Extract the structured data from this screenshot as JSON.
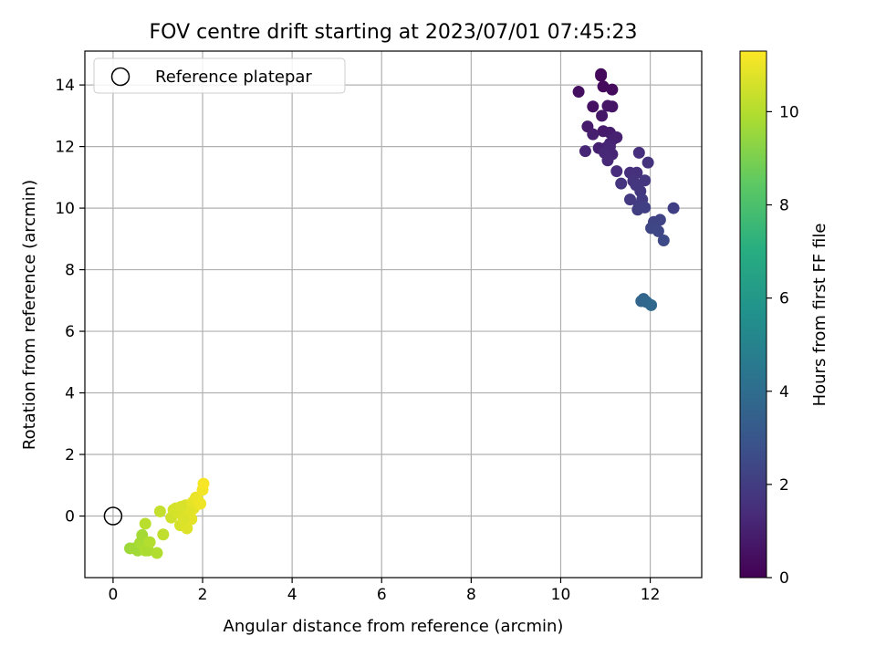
{
  "chart_data": {
    "type": "scatter",
    "title": "FOV centre drift starting at 2023/07/01 07:45:23",
    "xlabel": "Angular distance from reference (arcmin)",
    "ylabel": "Rotation from reference (arcmin)",
    "xlim": [
      -0.63,
      13.15
    ],
    "ylim": [
      -2.0,
      15.1
    ],
    "xticks": [
      0,
      2,
      4,
      6,
      8,
      10,
      12
    ],
    "yticks": [
      0,
      2,
      4,
      6,
      8,
      10,
      12,
      14
    ],
    "grid": true,
    "legend": {
      "placement": "top-left",
      "entries": [
        "Reference platepar"
      ]
    },
    "reference_point": {
      "x": 0,
      "y": 0
    },
    "colorbar": {
      "label": "Hours from first FF file",
      "range": [
        0,
        11.3
      ],
      "ticks": [
        0,
        2,
        4,
        6,
        8,
        10
      ],
      "colormap": "viridis"
    },
    "series": [
      {
        "x": [
          10.9,
          10.95,
          10.9,
          11.15,
          10.4,
          10.72,
          11.15,
          10.92,
          11.05,
          10.6,
          11.1,
          10.95,
          10.72,
          11.18,
          11.25,
          10.85,
          11.0,
          11.1,
          11.15,
          10.55,
          11.1,
          10.98,
          11.05
        ],
        "y": [
          14.3,
          13.95,
          14.35,
          13.85,
          13.78,
          13.3,
          13.3,
          13.0,
          13.32,
          12.65,
          12.45,
          12.5,
          12.4,
          12.25,
          12.3,
          11.95,
          11.95,
          12.1,
          11.75,
          11.85,
          12.0,
          11.8,
          11.55
        ],
        "hours": [
          0.2,
          0.3,
          0.25,
          0.35,
          0.45,
          0.5,
          0.6,
          0.7,
          0.65,
          0.8,
          0.9,
          0.85,
          0.95,
          1.0,
          1.05,
          1.0,
          1.1,
          1.1,
          1.15,
          1.2,
          1.2,
          1.25,
          1.3
        ]
      },
      {
        "x": [
          11.25,
          11.55,
          11.7,
          11.75,
          11.95,
          11.62,
          11.35,
          11.68,
          11.88,
          11.78,
          11.55,
          11.82,
          11.75,
          11.72,
          11.88,
          12.52,
          12.08,
          12.22,
          12.12,
          12.02,
          12.18,
          12.3
        ],
        "y": [
          11.2,
          11.15,
          11.15,
          11.8,
          11.48,
          10.88,
          10.8,
          10.75,
          10.9,
          10.55,
          10.28,
          10.28,
          10.1,
          9.95,
          10.02,
          10.0,
          9.55,
          9.62,
          9.5,
          9.35,
          9.25,
          8.95
        ],
        "hours": [
          1.4,
          1.5,
          1.55,
          1.5,
          1.6,
          1.65,
          1.7,
          1.75,
          1.8,
          1.85,
          1.9,
          1.95,
          2.0,
          2.05,
          2.1,
          2.1,
          2.2,
          2.25,
          2.3,
          2.35,
          2.4,
          2.5
        ]
      },
      {
        "x": [
          11.85,
          11.8,
          11.92,
          12.02
        ],
        "y": [
          7.05,
          6.98,
          6.95,
          6.85
        ],
        "hours": [
          3.6,
          3.7,
          3.75,
          3.8
        ]
      },
      {
        "x": [
          0.38,
          0.48,
          0.55,
          0.6,
          0.65,
          0.72,
          0.78,
          0.82,
          0.98,
          0.72,
          1.12,
          1.05
        ],
        "y": [
          -1.05,
          -1.05,
          -1.12,
          -0.88,
          -0.62,
          -1.12,
          -1.12,
          -0.85,
          -1.2,
          -0.25,
          -0.6,
          0.15
        ],
        "hours": [
          9.6,
          9.7,
          9.65,
          9.8,
          9.75,
          9.9,
          9.85,
          10.0,
          9.95,
          10.1,
          10.2,
          10.3
        ]
      },
      {
        "x": [
          1.3,
          1.35,
          1.45,
          1.5,
          1.55,
          1.6,
          1.62,
          1.65,
          1.7,
          1.72,
          1.75,
          1.78,
          1.8,
          1.85,
          1.9,
          1.95,
          2.0,
          2.02,
          1.68,
          1.58,
          1.4,
          1.52
        ],
        "y": [
          -0.05,
          0.2,
          0.1,
          -0.3,
          0.05,
          -0.2,
          0.35,
          -0.4,
          0.3,
          0.1,
          -0.1,
          0.45,
          0.25,
          0.6,
          0.5,
          0.4,
          0.85,
          1.05,
          0.15,
          -0.1,
          0.25,
          0.3
        ],
        "hours": [
          10.5,
          10.55,
          10.6,
          10.6,
          10.65,
          10.7,
          10.7,
          10.75,
          10.8,
          10.8,
          10.85,
          10.9,
          10.9,
          10.95,
          11.0,
          11.05,
          11.1,
          11.2,
          10.8,
          10.7,
          10.6,
          10.65
        ]
      }
    ]
  }
}
